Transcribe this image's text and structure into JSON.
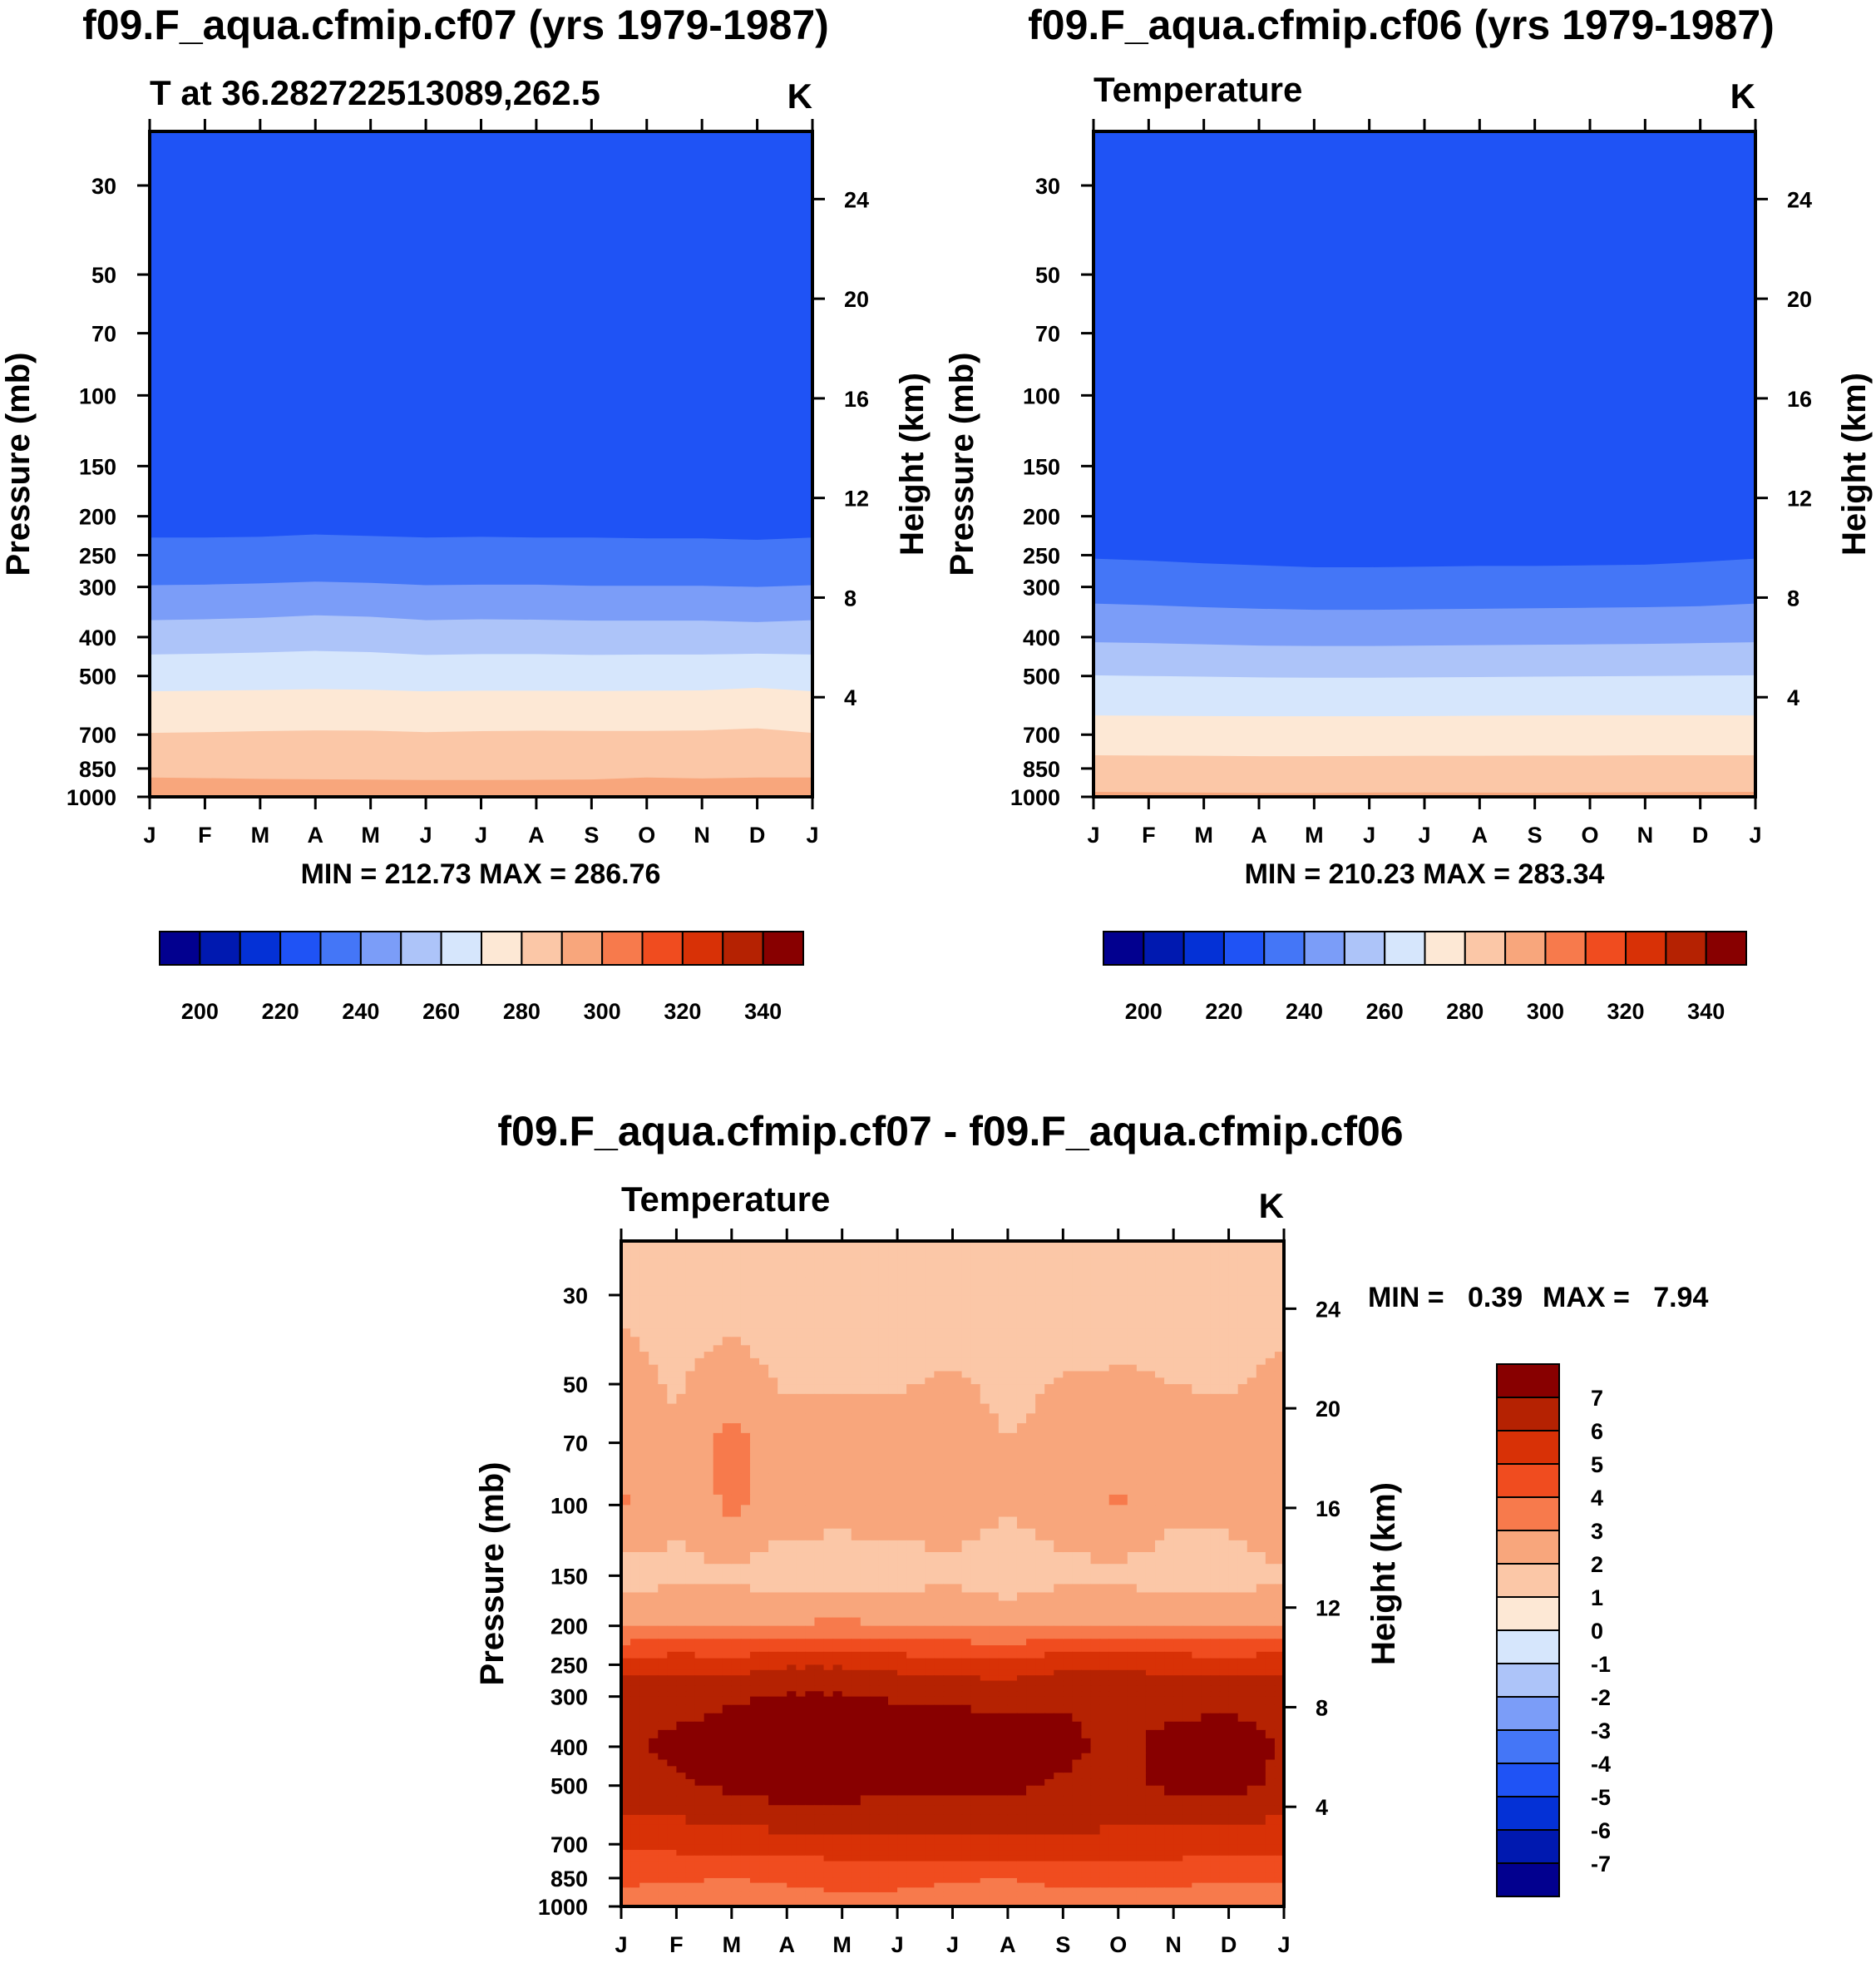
{
  "palette": {
    "base_levels": [
      200,
      210,
      220,
      230,
      240,
      250,
      260,
      270,
      280,
      290,
      300,
      310,
      320,
      330,
      340
    ],
    "base_colors": [
      "#02008f",
      "#0019b0",
      "#0431d6",
      "#1f53f5",
      "#4476f7",
      "#7b9df8",
      "#adc4f9",
      "#d6e6fc",
      "#fde8d5",
      "#fbc7a7",
      "#f8a67c",
      "#f77a4c",
      "#f04c1f",
      "#d83106",
      "#b52202",
      "#880000"
    ],
    "diff_levels": [
      -7,
      -6,
      -5,
      -4,
      -3,
      -2,
      -1,
      0,
      1,
      2,
      3,
      4,
      5,
      6,
      7
    ],
    "diff_colors": [
      "#02008f",
      "#0019b0",
      "#0431d6",
      "#1f53f5",
      "#4476f7",
      "#7b9df8",
      "#adc4f9",
      "#d6e6fc",
      "#fde8d5",
      "#fbc7a7",
      "#f8a67c",
      "#f77a4c",
      "#f04c1f",
      "#d83106",
      "#b52202",
      "#880000"
    ]
  },
  "chart_data": [
    {
      "type": "heatmap",
      "id": "panel_a",
      "title": "f09.F_aqua.cfmip.cf07 (yrs 1979-1987)",
      "subtitle": "T at 36.282722513089,262.5",
      "units": "K",
      "xlabel": "",
      "ylabel": "Pressure (mb)",
      "ylabel_right": "Height (km)",
      "x_ticks": [
        "J",
        "F",
        "M",
        "A",
        "M",
        "J",
        "J",
        "A",
        "S",
        "O",
        "N",
        "D",
        "J"
      ],
      "pressure_ticks": [
        30,
        50,
        70,
        100,
        150,
        200,
        250,
        300,
        400,
        500,
        700,
        850,
        1000
      ],
      "height_ticks": [
        24,
        20,
        16,
        12,
        8,
        4
      ],
      "ylim": [
        1000,
        22
      ],
      "stats": "MIN = 212.73 MAX = 286.76",
      "colorbar_labels": [
        "200",
        "220",
        "240",
        "260",
        "280",
        "300",
        "320",
        "340"
      ],
      "contours": {
        "225": [
          226,
          226,
          225,
          222,
          224,
          226,
          225,
          226,
          226,
          227,
          227,
          229,
          226
        ],
        "235": [
          297,
          296,
          294,
          291,
          293,
          297,
          296,
          296,
          298,
          298,
          298,
          300,
          297
        ],
        "245": [
          363,
          361,
          358,
          353,
          356,
          363,
          361,
          362,
          364,
          364,
          364,
          367,
          363
        ],
        "255": [
          442,
          440,
          437,
          433,
          436,
          443,
          441,
          441,
          443,
          442,
          442,
          440,
          442
        ],
        "265": [
          546,
          544,
          542,
          539,
          541,
          546,
          544,
          544,
          545,
          544,
          543,
          535,
          546
        ],
        "275": [
          693,
          690,
          686,
          683,
          684,
          690,
          686,
          684,
          685,
          685,
          683,
          675,
          693
        ],
        "285": [
          895,
          898,
          902,
          904,
          906,
          908,
          908,
          907,
          905,
          895,
          900,
          895,
          895
        ]
      }
    },
    {
      "type": "heatmap",
      "id": "panel_b",
      "title": "f09.F_aqua.cfmip.cf06 (yrs 1979-1987)",
      "subtitle": "Temperature",
      "units": "K",
      "xlabel": "",
      "ylabel": "Pressure (mb)",
      "ylabel_right": "Height (km)",
      "x_ticks": [
        "J",
        "F",
        "M",
        "A",
        "M",
        "J",
        "J",
        "A",
        "S",
        "O",
        "N",
        "D",
        "J"
      ],
      "pressure_ticks": [
        30,
        50,
        70,
        100,
        150,
        200,
        250,
        300,
        400,
        500,
        700,
        850,
        1000
      ],
      "height_ticks": [
        24,
        20,
        16,
        12,
        8,
        4
      ],
      "ylim": [
        1000,
        22
      ],
      "stats": "MIN = 210.23 MAX = 283.34",
      "colorbar_labels": [
        "200",
        "220",
        "240",
        "260",
        "280",
        "300",
        "320",
        "340"
      ],
      "contours": {
        "225": [
          255,
          258,
          262,
          265,
          268,
          268,
          267,
          266,
          266,
          265,
          264,
          260,
          255
        ],
        "235": [
          330,
          333,
          337,
          340,
          342,
          342,
          341,
          340,
          339,
          338,
          337,
          335,
          330
        ],
        "245": [
          412,
          414,
          417,
          420,
          421,
          421,
          420,
          419,
          418,
          417,
          416,
          414,
          412
        ],
        "255": [
          498,
          500,
          502,
          504,
          505,
          505,
          504,
          503,
          502,
          501,
          500,
          499,
          498
        ],
        "265": [
          627,
          628,
          629,
          630,
          630,
          630,
          629,
          628,
          627,
          626,
          626,
          626,
          627
        ],
        "275": [
          788,
          789,
          790,
          792,
          792,
          791,
          790,
          790,
          789,
          789,
          788,
          788,
          788
        ],
        "285": [
          972,
          974,
          976,
          978,
          978,
          976,
          975,
          976,
          977,
          975,
          974,
          973,
          972
        ]
      }
    },
    {
      "type": "heatmap",
      "id": "panel_c",
      "title": "f09.F_aqua.cfmip.cf07 - f09.F_aqua.cfmip.cf06",
      "subtitle": "Temperature",
      "units": "K",
      "xlabel": "",
      "ylabel": "Pressure (mb)",
      "ylabel_right": "Height (km)",
      "x_ticks": [
        "J",
        "F",
        "M",
        "A",
        "M",
        "J",
        "J",
        "A",
        "S",
        "O",
        "N",
        "D",
        "J"
      ],
      "pressure_ticks": [
        30,
        50,
        70,
        100,
        150,
        200,
        250,
        300,
        400,
        500,
        700,
        850,
        1000
      ],
      "height_ticks": [
        24,
        20,
        16,
        12,
        8,
        4
      ],
      "ylim": [
        1000,
        22
      ],
      "stats_min": "MIN =   0.39",
      "stats_max": "MAX =   7.94",
      "colorbar_labels": [
        "7",
        "6",
        "5",
        "4",
        "3",
        "2",
        "1",
        "0",
        "-1",
        "-2",
        "-3",
        "-4",
        "-5",
        "-6",
        "-7"
      ],
      "pressure_levels": [
        22,
        30,
        40,
        50,
        70,
        100,
        150,
        200,
        250,
        300,
        400,
        500,
        700,
        850,
        1000
      ],
      "values": [
        [
          1.8,
          1.7,
          1.6,
          1.2,
          1.1,
          1.5,
          1.6,
          1.2,
          1.6,
          1.7,
          1.8,
          1.4,
          1.8
        ],
        [
          1.9,
          1.7,
          1.7,
          1.3,
          1.2,
          1.6,
          1.6,
          1.0,
          1.5,
          1.8,
          1.9,
          1.6,
          1.9
        ],
        [
          2.1,
          1.8,
          2.1,
          1.6,
          1.6,
          1.8,
          1.6,
          1.3,
          1.7,
          1.9,
          1.9,
          1.8,
          2.0
        ],
        [
          2.3,
          1.9,
          2.5,
          1.9,
          1.9,
          1.9,
          2.2,
          1.7,
          2.1,
          2.1,
          2.0,
          1.9,
          2.2
        ],
        [
          2.9,
          2.1,
          3.4,
          2.4,
          2.3,
          2.4,
          2.6,
          2.0,
          2.4,
          2.7,
          2.4,
          2.4,
          2.5
        ],
        [
          3.1,
          2.3,
          3.2,
          2.5,
          2.4,
          2.4,
          2.6,
          2.1,
          2.5,
          3.1,
          2.4,
          2.4,
          3.1
        ],
        [
          1.6,
          1.7,
          1.8,
          1.4,
          1.4,
          1.6,
          1.7,
          1.3,
          1.7,
          1.8,
          1.3,
          1.4,
          1.9
        ],
        [
          2.9,
          3.0,
          2.9,
          3.1,
          3.2,
          3.0,
          3.1,
          2.8,
          3.1,
          3.1,
          3.0,
          3.0,
          3.1
        ],
        [
          5.5,
          5.7,
          5.6,
          5.9,
          5.9,
          5.7,
          5.5,
          5.3,
          5.8,
          5.8,
          5.7,
          5.6,
          5.7
        ],
        [
          6.7,
          6.7,
          6.9,
          7.1,
          7.1,
          6.9,
          6.9,
          6.8,
          6.9,
          6.8,
          6.7,
          6.8,
          6.7
        ],
        [
          6.8,
          7.2,
          7.4,
          7.7,
          7.6,
          7.6,
          7.5,
          7.3,
          7.2,
          6.8,
          7.3,
          7.4,
          6.9
        ],
        [
          6.6,
          6.9,
          7.2,
          7.6,
          7.5,
          7.4,
          7.3,
          7.2,
          6.9,
          6.7,
          7.2,
          7.3,
          6.8
        ],
        [
          5.2,
          5.3,
          5.4,
          5.6,
          5.6,
          5.6,
          5.8,
          5.8,
          5.8,
          5.7,
          5.6,
          5.4,
          5.3
        ],
        [
          4.2,
          4.1,
          4.0,
          4.1,
          4.2,
          4.3,
          4.1,
          4.0,
          4.3,
          4.2,
          4.2,
          4.1,
          4.1
        ],
        [
          3.6,
          3.4,
          3.5,
          3.7,
          3.8,
          3.6,
          3.5,
          3.4,
          3.5,
          3.6,
          3.5,
          3.4,
          3.5
        ]
      ]
    }
  ]
}
